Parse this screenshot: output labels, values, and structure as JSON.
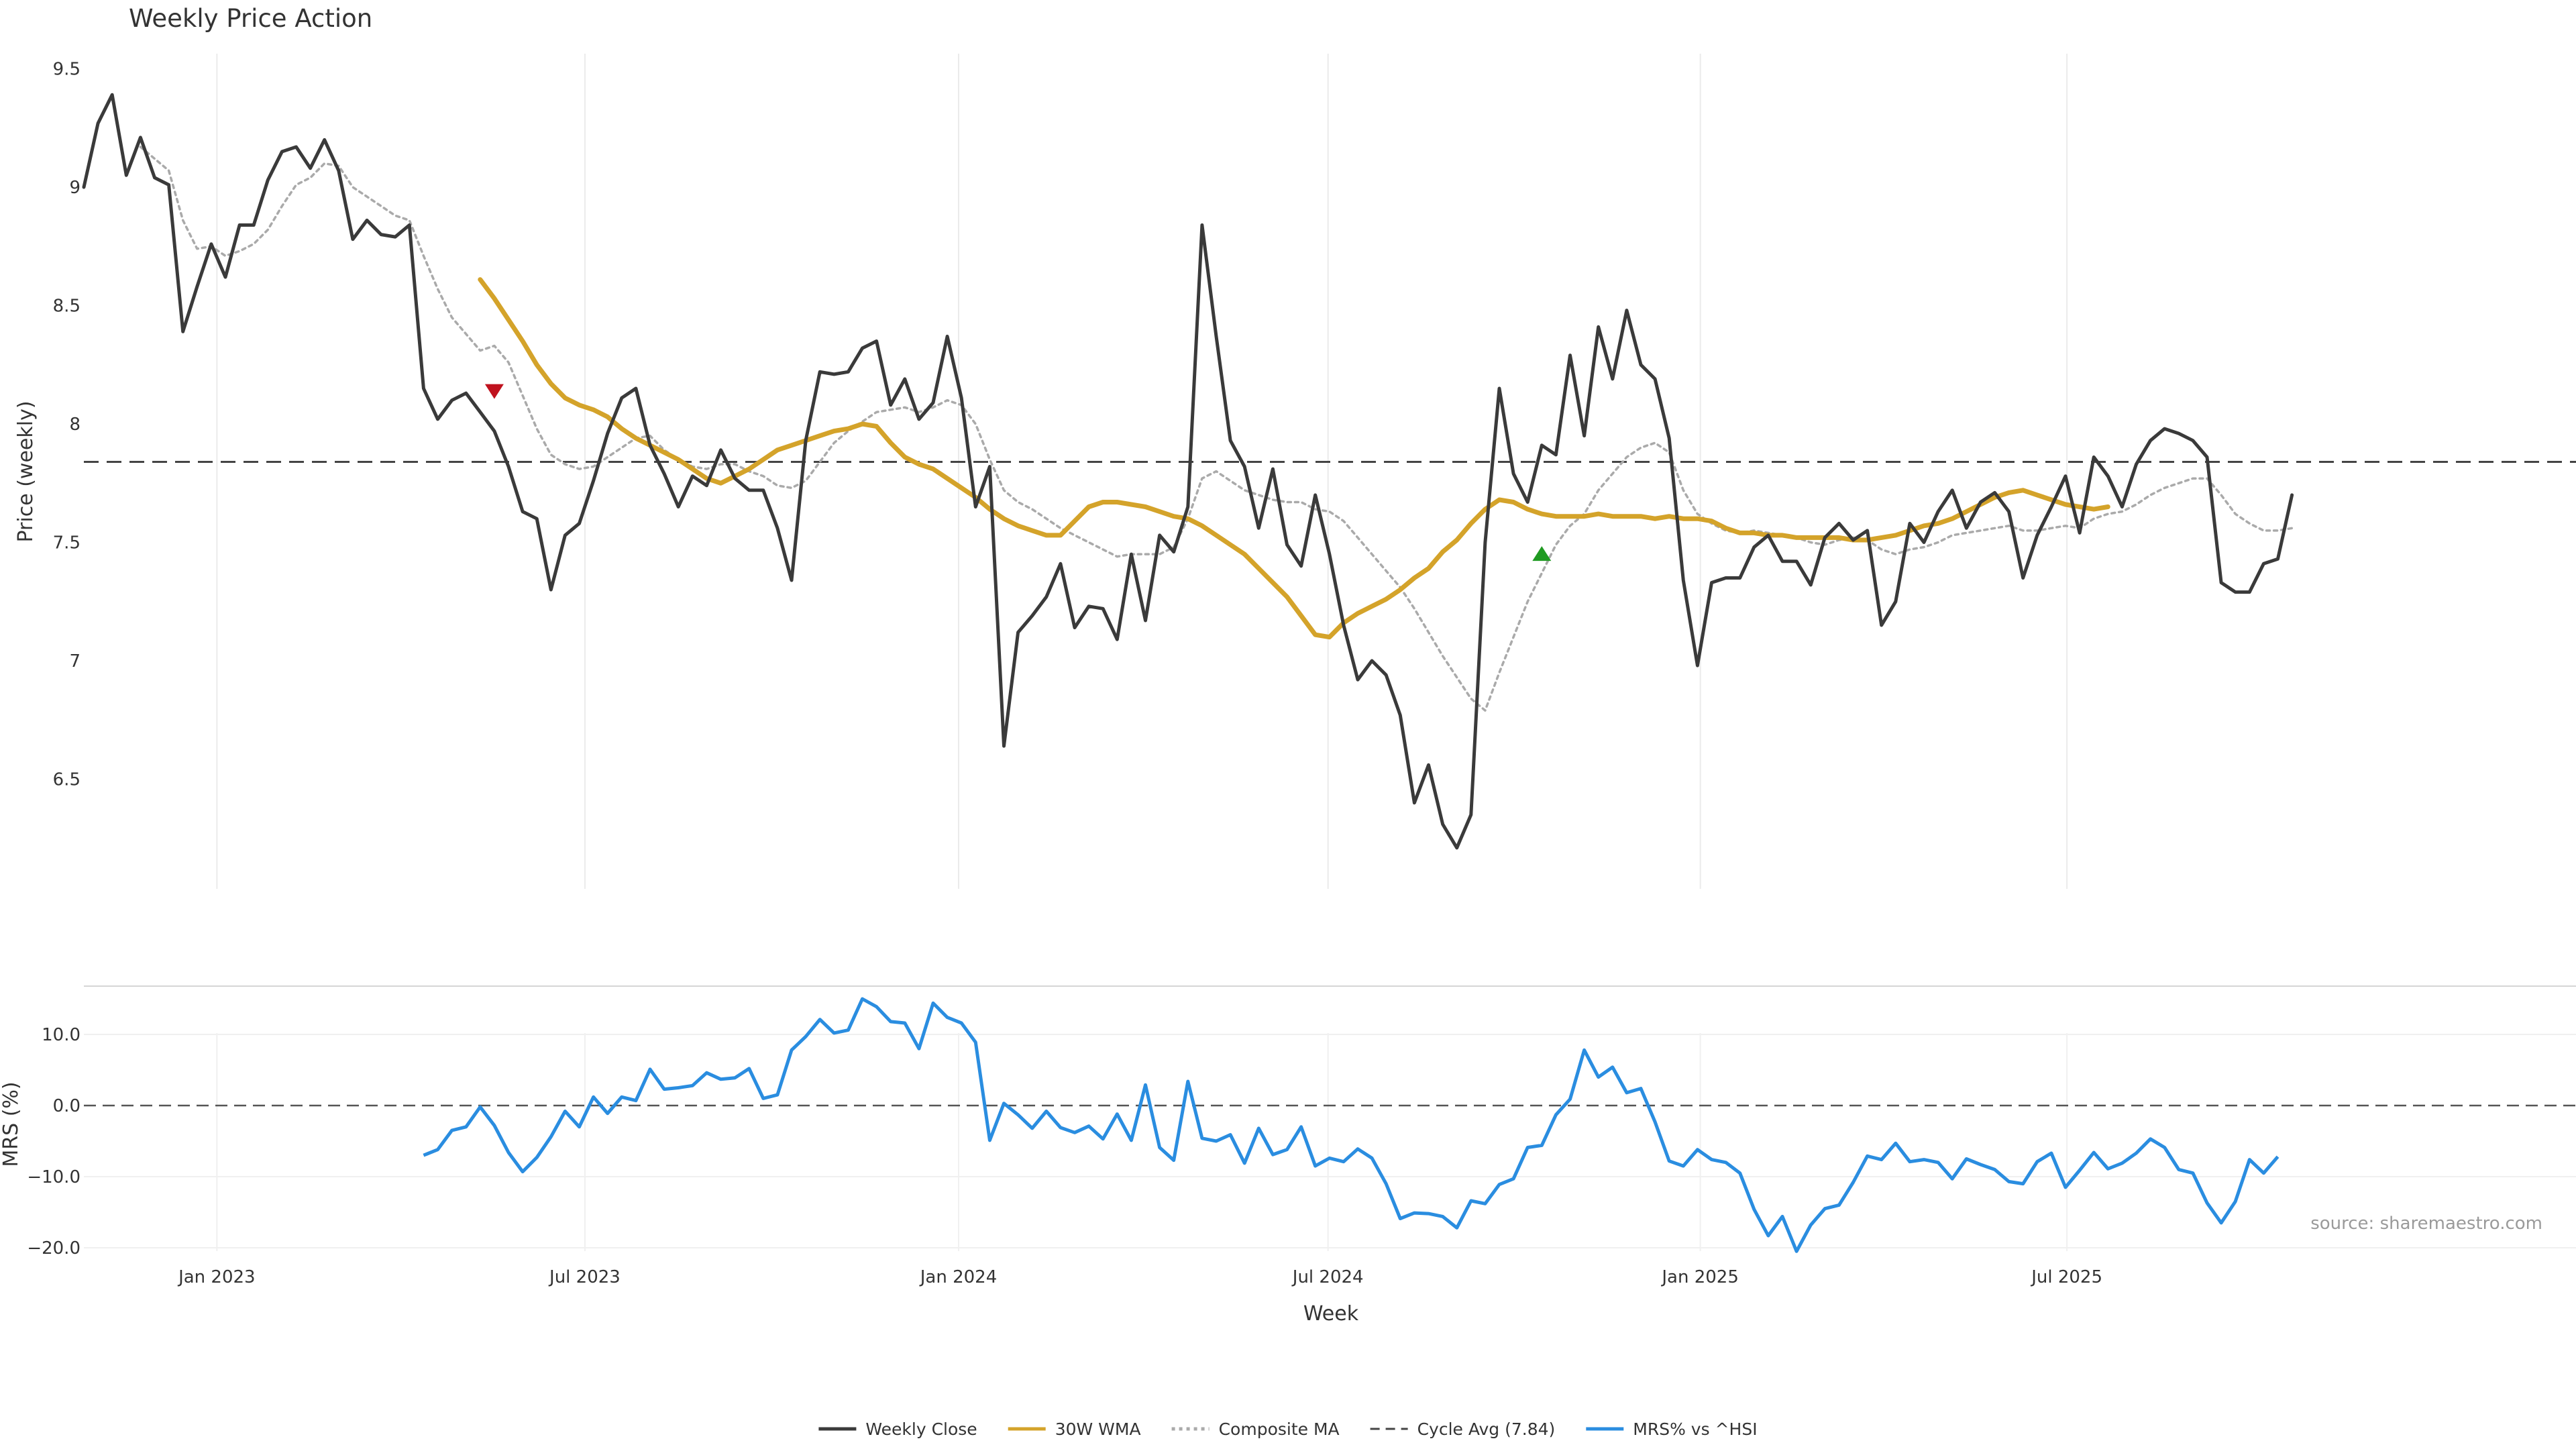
{
  "chart_data": [
    {
      "type": "line",
      "title": "Weekly Price Action",
      "ylabel": "Price (weekly)",
      "ylim": [
        6.0,
        9.55
      ],
      "yticks": [
        "9.5",
        "9",
        "8.5",
        "8",
        "7.5",
        "7",
        "6.5"
      ],
      "grid": "vertical",
      "x_start": "2022-10-28",
      "x_interval": "weekly",
      "cycle_avg": 7.84,
      "series": [
        {
          "name": "Weekly Close",
          "color": "#3a3a3a",
          "style": "solid",
          "values": [
            9.0,
            9.27,
            9.39,
            9.05,
            9.21,
            9.04,
            9.01,
            8.39,
            8.58,
            8.76,
            8.62,
            8.84,
            8.84,
            9.03,
            9.15,
            9.17,
            9.08,
            9.2,
            9.07,
            8.78,
            8.86,
            8.8,
            8.79,
            8.84,
            8.15,
            8.02,
            8.1,
            8.13,
            8.05,
            7.97,
            7.82,
            7.63,
            7.6,
            7.3,
            7.53,
            7.58,
            7.76,
            7.96,
            8.11,
            8.15,
            7.91,
            7.79,
            7.65,
            7.78,
            7.74,
            7.89,
            7.77,
            7.72,
            7.72,
            7.56,
            7.34,
            7.93,
            8.22,
            8.21,
            8.22,
            8.32,
            8.35,
            8.08,
            8.19,
            8.02,
            8.09,
            8.37,
            8.11,
            7.65,
            7.82,
            6.64,
            7.12,
            7.19,
            7.27,
            7.41,
            7.14,
            7.23,
            7.22,
            7.09,
            7.45,
            7.17,
            7.53,
            7.46,
            7.65,
            8.84,
            8.37,
            7.93,
            7.82,
            7.56,
            7.81,
            7.49,
            7.4,
            7.7,
            7.45,
            7.15,
            6.92,
            7.0,
            6.94,
            6.77,
            6.4,
            6.56,
            6.31,
            6.21,
            6.35,
            7.5,
            8.15,
            7.79,
            7.67,
            7.91,
            7.87,
            8.29,
            7.95,
            8.41,
            8.19,
            8.48,
            8.25,
            8.19,
            7.94,
            7.34,
            6.98,
            7.33,
            7.35,
            7.35,
            7.48,
            7.53,
            7.42,
            7.42,
            7.32,
            7.52,
            7.58,
            7.51,
            7.55,
            7.15,
            7.25,
            7.58,
            7.5,
            7.63,
            7.72,
            7.56,
            7.67,
            7.71,
            7.63,
            7.35,
            7.53,
            7.65,
            7.78,
            7.54,
            7.86,
            7.78,
            7.65,
            7.83,
            7.93,
            7.98,
            7.96,
            7.93,
            7.86,
            7.33,
            7.29,
            7.29,
            7.41,
            7.43,
            7.7
          ]
        },
        {
          "name": "30W WMA",
          "color": "#d4a32a",
          "style": "solid",
          "start_index": 28,
          "values": [
            8.61,
            8.53,
            8.44,
            8.35,
            8.25,
            8.17,
            8.11,
            8.08,
            8.06,
            8.03,
            7.98,
            7.94,
            7.91,
            7.88,
            7.85,
            7.81,
            7.77,
            7.75,
            7.78,
            7.81,
            7.85,
            7.89,
            7.91,
            7.93,
            7.95,
            7.97,
            7.98,
            8.0,
            7.99,
            7.92,
            7.86,
            7.83,
            7.81,
            7.77,
            7.73,
            7.69,
            7.64,
            7.6,
            7.57,
            7.55,
            7.53,
            7.53,
            7.59,
            7.65,
            7.67,
            7.67,
            7.66,
            7.65,
            7.63,
            7.61,
            7.6,
            7.57,
            7.53,
            7.49,
            7.45,
            7.39,
            7.33,
            7.27,
            7.19,
            7.11,
            7.1,
            7.16,
            7.2,
            7.23,
            7.26,
            7.3,
            7.35,
            7.39,
            7.46,
            7.51,
            7.58,
            7.64,
            7.68,
            7.67,
            7.64,
            7.62,
            7.61,
            7.61,
            7.61,
            7.62,
            7.61,
            7.61,
            7.61,
            7.6,
            7.61,
            7.6,
            7.6,
            7.59,
            7.56,
            7.54,
            7.54,
            7.53,
            7.53,
            7.52,
            7.52,
            7.52,
            7.52,
            7.51,
            7.51,
            7.52,
            7.53,
            7.55,
            7.57,
            7.58,
            7.6,
            7.63,
            7.66,
            7.69,
            7.71,
            7.72,
            7.7,
            7.68,
            7.66,
            7.65,
            7.64,
            7.65
          ]
        },
        {
          "name": "Composite MA",
          "color": "#aaaaaa",
          "style": "dotted",
          "start_index": 4,
          "values": [
            9.17,
            9.12,
            9.07,
            8.86,
            8.74,
            8.75,
            8.71,
            8.73,
            8.76,
            8.82,
            8.92,
            9.01,
            9.04,
            9.1,
            9.09,
            9.0,
            8.96,
            8.92,
            8.88,
            8.86,
            8.71,
            8.57,
            8.45,
            8.38,
            8.31,
            8.33,
            8.26,
            8.12,
            7.98,
            7.87,
            7.83,
            7.81,
            7.82,
            7.86,
            7.9,
            7.94,
            7.95,
            7.89,
            7.85,
            7.82,
            7.81,
            7.83,
            7.83,
            7.8,
            7.78,
            7.74,
            7.73,
            7.76,
            7.84,
            7.92,
            7.97,
            8.01,
            8.05,
            8.06,
            8.07,
            8.05,
            8.07,
            8.1,
            8.08,
            8.0,
            7.85,
            7.72,
            7.67,
            7.64,
            7.6,
            7.56,
            7.53,
            7.5,
            7.47,
            7.44,
            7.45,
            7.45,
            7.45,
            7.48,
            7.6,
            7.77,
            7.8,
            7.76,
            7.72,
            7.7,
            7.68,
            7.67,
            7.67,
            7.64,
            7.63,
            7.59,
            7.52,
            7.45,
            7.38,
            7.31,
            7.22,
            7.12,
            7.02,
            6.93,
            6.84,
            6.79,
            6.95,
            7.1,
            7.25,
            7.37,
            7.49,
            7.57,
            7.62,
            7.72,
            7.79,
            7.86,
            7.9,
            7.92,
            7.88,
            7.72,
            7.62,
            7.58,
            7.55,
            7.54,
            7.55,
            7.54,
            7.53,
            7.52,
            7.5,
            7.49,
            7.51,
            7.52,
            7.51,
            7.47,
            7.45,
            7.47,
            7.48,
            7.5,
            7.53,
            7.54,
            7.55,
            7.56,
            7.57,
            7.55,
            7.55,
            7.56,
            7.57,
            7.56,
            7.6,
            7.62,
            7.63,
            7.66,
            7.7,
            7.73,
            7.75,
            7.77,
            7.77,
            7.7,
            7.62,
            7.58,
            7.55,
            7.55,
            7.56
          ]
        }
      ],
      "annotations": [
        {
          "type": "sell-marker",
          "shape": "down-triangle",
          "color": "#c0121e",
          "x_index": 29,
          "y": 8.14
        },
        {
          "type": "buy-marker",
          "shape": "up-triangle",
          "color": "#1f9a22",
          "x_index": 103,
          "y": 7.45
        }
      ]
    },
    {
      "type": "line",
      "ylabel": "MRS (%)",
      "ylim": [
        -22,
        17
      ],
      "yticks": [
        "10.0",
        "0.0",
        "−10.0",
        "−20.0"
      ],
      "zero_line": true,
      "series": [
        {
          "name": "MRS% vs ^HSI",
          "color": "#2a8de0",
          "style": "solid",
          "start_index": 24,
          "values": [
            -7.0,
            -6.2,
            -3.5,
            -3.0,
            -0.2,
            -2.8,
            -6.6,
            -9.3,
            -7.3,
            -4.4,
            -0.8,
            -3.0,
            1.2,
            -1.1,
            1.2,
            0.7,
            5.1,
            2.3,
            2.5,
            2.8,
            4.6,
            3.7,
            3.9,
            5.2,
            1.0,
            1.5,
            7.8,
            9.7,
            12.1,
            10.2,
            10.6,
            15.0,
            13.9,
            11.8,
            11.6,
            8.0,
            14.4,
            12.4,
            11.6,
            8.9,
            -4.9,
            0.3,
            -1.3,
            -3.2,
            -0.8,
            -3.1,
            -3.8,
            -2.9,
            -4.7,
            -1.2,
            -4.9,
            2.9,
            -5.9,
            -7.7,
            3.4,
            -4.6,
            -5.0,
            -4.1,
            -8.1,
            -3.2,
            -6.9,
            -6.2,
            -3.0,
            -8.5,
            -7.4,
            -7.9,
            -6.1,
            -7.4,
            -11.0,
            -15.9,
            -15.1,
            -15.2,
            -15.6,
            -17.2,
            -13.4,
            -13.8,
            -11.1,
            -10.3,
            -5.9,
            -5.6,
            -1.3,
            0.9,
            7.8,
            4.0,
            5.4,
            1.8,
            2.4,
            -2.3,
            -7.8,
            -8.5,
            -6.2,
            -7.6,
            -8.0,
            -9.5,
            -14.6,
            -18.3,
            -15.6,
            -20.5,
            -16.8,
            -14.5,
            -14.0,
            -10.8,
            -7.1,
            -7.6,
            -5.3,
            -7.9,
            -7.6,
            -8.0,
            -10.3,
            -7.5,
            -8.3,
            -9.0,
            -10.7,
            -11.0,
            -7.9,
            -6.7,
            -11.5,
            -9.1,
            -6.6,
            -8.9,
            -8.1,
            -6.7,
            -4.7,
            -5.9,
            -9.0,
            -9.5,
            -13.7,
            -16.5,
            -13.5,
            -7.6,
            -9.5,
            -7.2
          ]
        }
      ],
      "source": "source: sharemaestro.com"
    }
  ],
  "xaxis": {
    "label": "Week",
    "ticks": [
      {
        "label": "Jan 2023",
        "x_index": 9.4
      },
      {
        "label": "Jul 2023",
        "x_index": 35.4
      },
      {
        "label": "Jan 2024",
        "x_index": 61.8
      },
      {
        "label": "Jul 2024",
        "x_index": 87.9
      },
      {
        "label": "Jan 2025",
        "x_index": 114.2
      },
      {
        "label": "Jul 2025",
        "x_index": 140.1
      }
    ]
  },
  "legend": {
    "placement": "bottom-center",
    "items": [
      {
        "label": "Weekly Close",
        "color": "#3a3a3a",
        "style": "solid"
      },
      {
        "label": "30W WMA",
        "color": "#d4a32a",
        "style": "solid"
      },
      {
        "label": "Composite MA",
        "color": "#aaaaaa",
        "style": "dotted"
      },
      {
        "label": "Cycle Avg (7.84)",
        "color": "#444444",
        "style": "dashed"
      },
      {
        "label": "MRS% vs ^HSI",
        "color": "#2a8de0",
        "style": "solid"
      }
    ]
  }
}
